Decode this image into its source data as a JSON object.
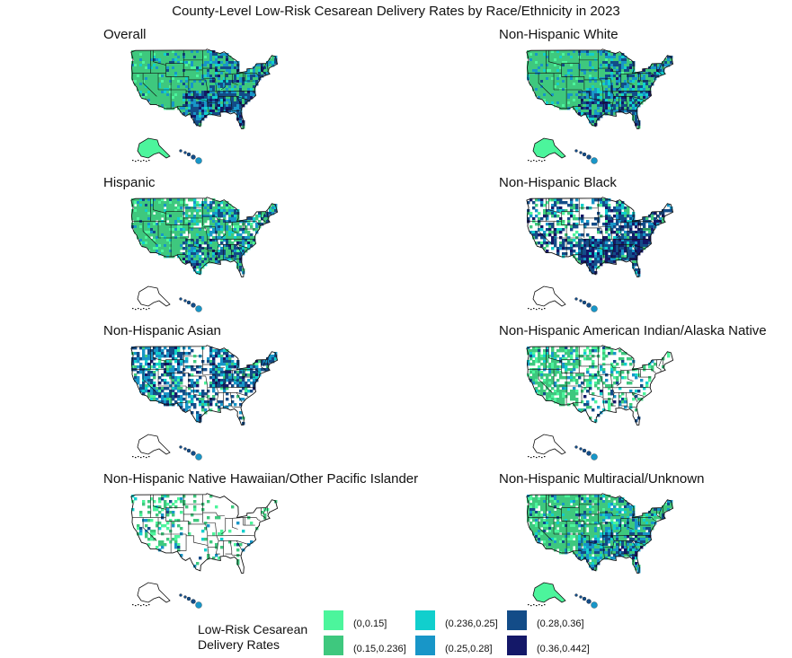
{
  "title": "County-Level Low-Risk Cesarean Delivery Rates by Race/Ethnicity in 2023",
  "colors": {
    "c1": "#4cf59c",
    "c2": "#3ec87e",
    "c3": "#11cfcd",
    "c4": "#1896c8",
    "c5": "#134c88",
    "c6": "#141868",
    "outline": "#111111"
  },
  "panels": [
    {
      "name": "Overall",
      "pattern": "overall"
    },
    {
      "name": "Non-Hispanic White",
      "pattern": "white"
    },
    {
      "name": "Hispanic",
      "pattern": "hispanic"
    },
    {
      "name": "Non-Hispanic Black",
      "pattern": "black"
    },
    {
      "name": "Non-Hispanic Asian",
      "pattern": "asian"
    },
    {
      "name": "Non-Hispanic American Indian/Alaska Native",
      "pattern": "aian"
    },
    {
      "name": "Non-Hispanic Native Hawaiian/Other Pacific Islander",
      "pattern": "nhopi"
    },
    {
      "name": "Non-Hispanic Multiracial/Unknown",
      "pattern": "multi"
    }
  ],
  "legend": {
    "title_line1": "Low-Risk Cesarean",
    "title_line2": "Delivery Rates",
    "items": [
      {
        "label": "(0,0.15]",
        "color": "#4cf59c"
      },
      {
        "label": "(0.15,0.236]",
        "color": "#3ec87e"
      },
      {
        "label": "(0.236,0.25]",
        "color": "#11cfcd"
      },
      {
        "label": "(0.25,0.28]",
        "color": "#1896c8"
      },
      {
        "label": "(0.28,0.36]",
        "color": "#134c88"
      },
      {
        "label": "(0.36,0.442]",
        "color": "#141868"
      }
    ]
  }
}
